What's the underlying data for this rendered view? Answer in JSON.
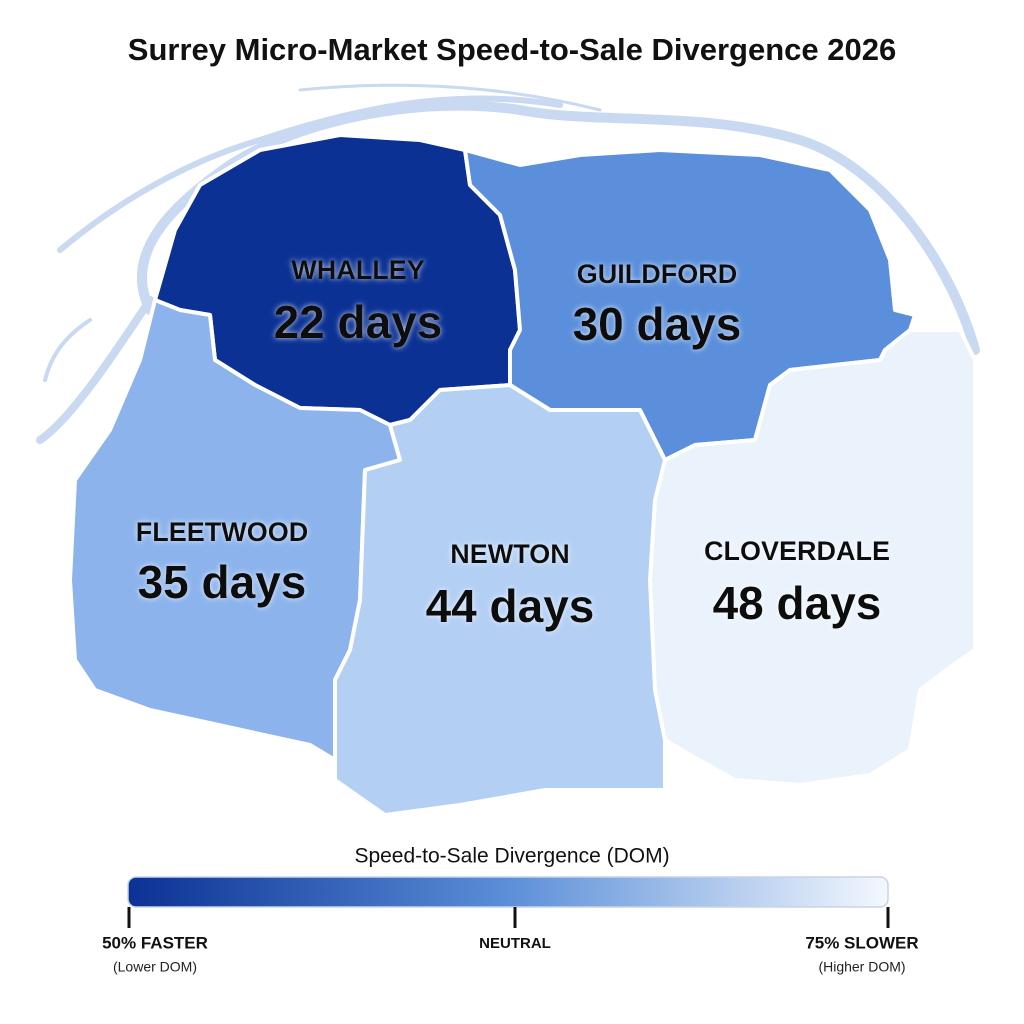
{
  "chart_data": {
    "type": "choropleth",
    "title": "Surrey Micro-Market Speed-to-Sale Divergence 2026",
    "categories": [
      "WHALLEY",
      "GUILDFORD",
      "FLEETWOOD",
      "NEWTON",
      "CLOVERDALE"
    ],
    "values": [
      22,
      30,
      35,
      44,
      48
    ],
    "value_labels": [
      "22 days",
      "30 days",
      "35 days",
      "44 days",
      "48 days"
    ],
    "colors": [
      "#0b3194",
      "#5b8fdb",
      "#8cb3ec",
      "#b3cff4",
      "#eaf2fc"
    ],
    "legend": {
      "title": "Speed-to-Sale Divergence (DOM)",
      "colors": [
        "#0b3194",
        "#5b8fd8",
        "#f4f8fe"
      ],
      "stops": [
        {
          "label": "50% FASTER",
          "sublabel": "(Lower DOM)"
        },
        {
          "label": "NEUTRAL"
        },
        {
          "label": "75% SLOWER",
          "sublabel": "(Higher DOM)"
        }
      ]
    }
  }
}
